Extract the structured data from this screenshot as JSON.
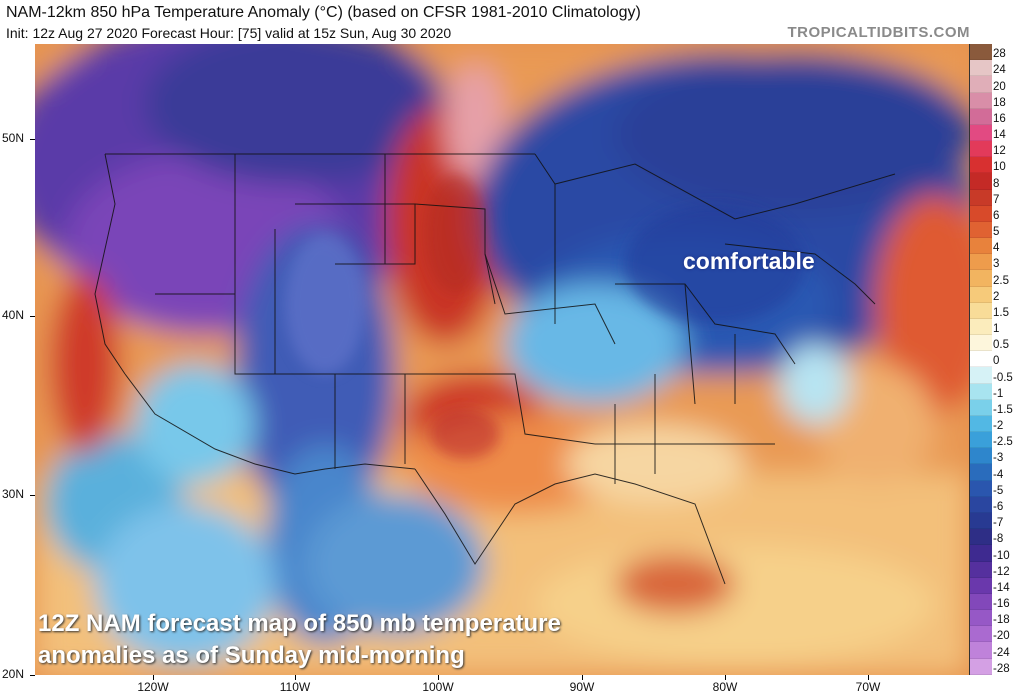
{
  "header": {
    "title": "NAM-12km 850 hPa Temperature Anomaly (°C) (based on CFSR 1981-2010 Climatology)",
    "subtitle": "Init: 12z Aug 27 2020   Forecast Hour: [75]   valid at 15z Sun, Aug 30 2020",
    "brand": "TROPICALTIDBITS.COM"
  },
  "map": {
    "lat_labels": [
      "50N",
      "40N",
      "30N",
      "20N"
    ],
    "lon_labels": [
      "120W",
      "110W",
      "100W",
      "90W",
      "80W",
      "70W"
    ],
    "annotation": "comfortable",
    "caption_line1": "12Z NAM forecast map of 850 mb temperature",
    "caption_line2": "anomalies as of Sunday mid-morning"
  },
  "colorbar": {
    "labels": [
      "28",
      "24",
      "20",
      "18",
      "16",
      "14",
      "12",
      "10",
      "8",
      "7",
      "6",
      "5",
      "4",
      "3",
      "2.5",
      "2",
      "1.5",
      "1",
      "0.5",
      "0",
      "-0.5",
      "-1",
      "-1.5",
      "-2",
      "-2.5",
      "-3",
      "-4",
      "-5",
      "-6",
      "-7",
      "-8",
      "-10",
      "-12",
      "-14",
      "-16",
      "-18",
      "-20",
      "-24",
      "-28"
    ],
    "colors": [
      "#8a5a3c",
      "#e6c6c6",
      "#e0aeb8",
      "#d98ea8",
      "#d26c98",
      "#e24a82",
      "#e23a5a",
      "#d83030",
      "#c42a26",
      "#c83a28",
      "#d84a2a",
      "#e06232",
      "#e8823c",
      "#ee9c4c",
      "#f2b460",
      "#f6ca7a",
      "#f8dc98",
      "#fbecbc",
      "#fdf6dc",
      "#ffffff",
      "#d6f2f6",
      "#a8e4f0",
      "#7ad0ea",
      "#52b8e4",
      "#3aa0da",
      "#2e86cc",
      "#2a6cbc",
      "#2a56ae",
      "#2a46a0",
      "#283a92",
      "#2e2e86",
      "#3e2a90",
      "#55309e",
      "#6a38ac",
      "#8248ba",
      "#9658c6",
      "#aa6ad0",
      "#bf82da",
      "#d4a0e4"
    ]
  }
}
